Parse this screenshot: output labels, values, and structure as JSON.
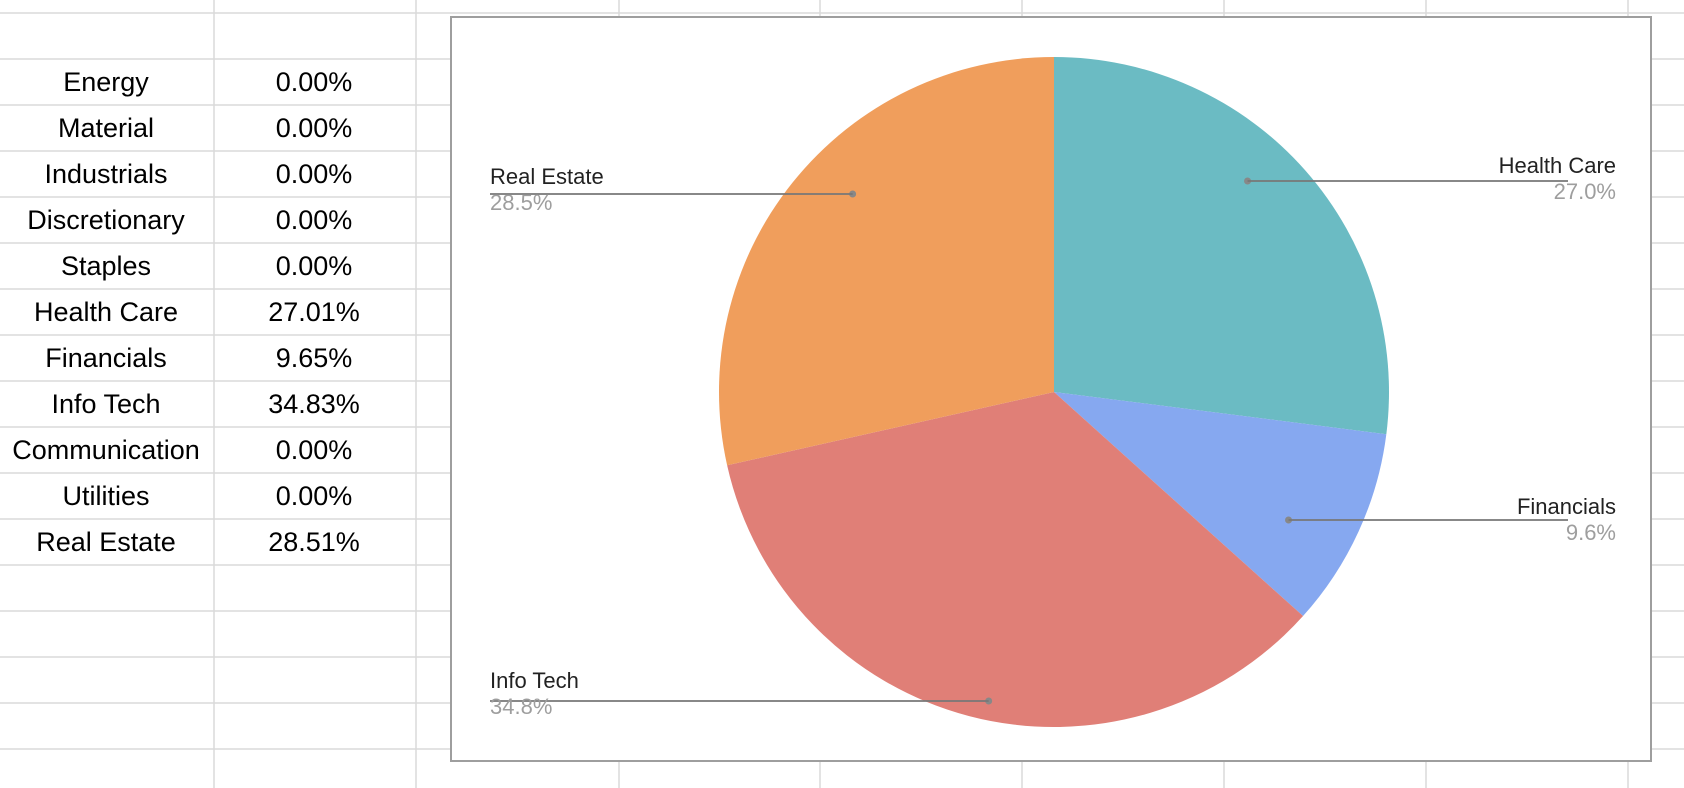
{
  "table": {
    "rows": [
      {
        "sector": "Energy",
        "weight": "0.00%"
      },
      {
        "sector": "Material",
        "weight": "0.00%"
      },
      {
        "sector": "Industrials",
        "weight": "0.00%"
      },
      {
        "sector": "Discretionary",
        "weight": "0.00%"
      },
      {
        "sector": "Staples",
        "weight": "0.00%"
      },
      {
        "sector": "Health Care",
        "weight": "27.01%"
      },
      {
        "sector": "Financials",
        "weight": "9.65%"
      },
      {
        "sector": "Info Tech",
        "weight": "34.83%"
      },
      {
        "sector": "Communication",
        "weight": "0.00%"
      },
      {
        "sector": "Utilities",
        "weight": "0.00%"
      },
      {
        "sector": "Real Estate",
        "weight": "28.51%"
      }
    ]
  },
  "chart_data": {
    "type": "pie",
    "start_angle_deg": 0,
    "direction": "clockwise",
    "grid": false,
    "legend": "none",
    "slices": [
      {
        "name": "Health Care",
        "value": 27.01,
        "label": "27.0%",
        "color": "#6bbbc3"
      },
      {
        "name": "Financials",
        "value": 9.65,
        "label": "9.6%",
        "color": "#86a8f0"
      },
      {
        "name": "Info Tech",
        "value": 34.83,
        "label": "34.8%",
        "color": "#e07f77"
      },
      {
        "name": "Real Estate",
        "value": 28.51,
        "label": "28.5%",
        "color": "#f09e5c"
      }
    ]
  }
}
